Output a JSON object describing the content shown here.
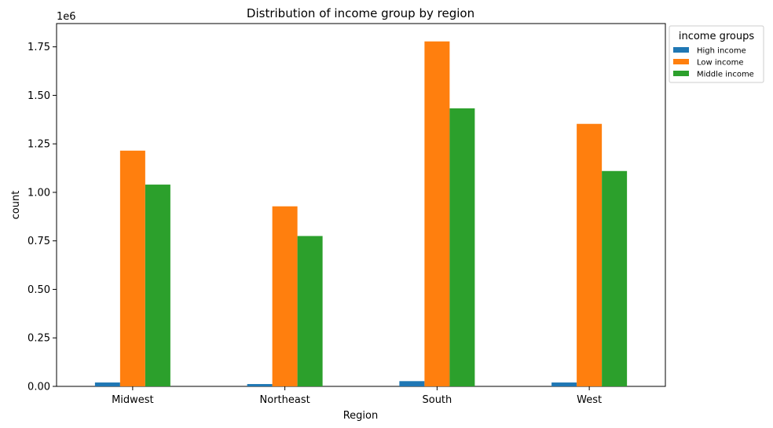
{
  "chart_data": {
    "type": "bar",
    "title": "Distribution of income group by region",
    "xlabel": "Region",
    "ylabel": "count",
    "y_offset_label": "1e6",
    "categories": [
      "Midwest",
      "Northeast",
      "South",
      "West"
    ],
    "series": [
      {
        "name": "High income",
        "color": "#1f77b4",
        "values": [
          20000,
          12000,
          27000,
          20000
        ]
      },
      {
        "name": "Low income",
        "color": "#ff7f0e",
        "values": [
          1215000,
          928000,
          1778000,
          1353000
        ]
      },
      {
        "name": "Middle income",
        "color": "#2ca02c",
        "values": [
          1040000,
          775000,
          1433000,
          1110000
        ]
      }
    ],
    "ylim": [
      0,
      1870000
    ],
    "yticks": [
      0,
      250000,
      500000,
      750000,
      1000000,
      1250000,
      1500000,
      1750000
    ],
    "ytick_labels": [
      "0.00",
      "0.25",
      "0.50",
      "0.75",
      "1.00",
      "1.25",
      "1.50",
      "1.75"
    ],
    "legend": {
      "title": "income groups",
      "placement": "outside-upper-right"
    },
    "grid": false
  }
}
